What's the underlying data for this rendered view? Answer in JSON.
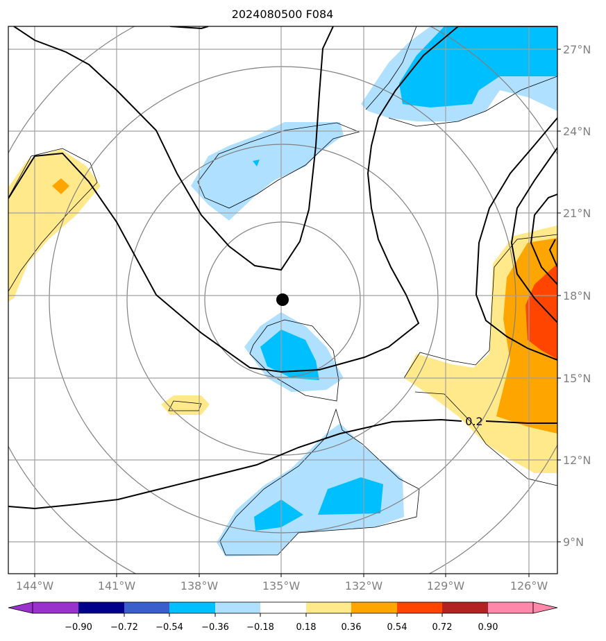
{
  "title": "2024080500 F084",
  "map": {
    "lon_labels": [
      "144°W",
      "141°W",
      "138°W",
      "135°W",
      "132°W",
      "129°W",
      "126°W"
    ],
    "lat_labels": [
      "27°N",
      "24°N",
      "21°N",
      "18°N",
      "15°N",
      "12°N",
      "9°N"
    ],
    "lon_range": [
      -145,
      -125
    ],
    "lat_range": [
      8,
      28
    ],
    "center_marker": {
      "lon": -135,
      "lat": 17.8
    },
    "contour_label": "0.2",
    "colors": {
      "light_blue": "#b0e0ff",
      "blue": "#00bfff",
      "light_yellow": "#ffe98a",
      "orange": "#ffa500",
      "red_orange": "#ff4500",
      "grid": "#a0a0a0",
      "range_rings": "#808080"
    }
  },
  "colorbar": {
    "labels": [
      "−0.90",
      "−0.72",
      "−0.54",
      "−0.36",
      "−0.18",
      "0.18",
      "0.36",
      "0.54",
      "0.72",
      "0.90"
    ],
    "colors": [
      "#9932cc",
      "#9932cc",
      "#00008b",
      "#3a5fcd",
      "#00bfff",
      "#b0e0ff",
      "#ffffff",
      "#ffe98a",
      "#ffa500",
      "#ff4500",
      "#b22222",
      "#ff88aa",
      "#ff88aa"
    ]
  }
}
